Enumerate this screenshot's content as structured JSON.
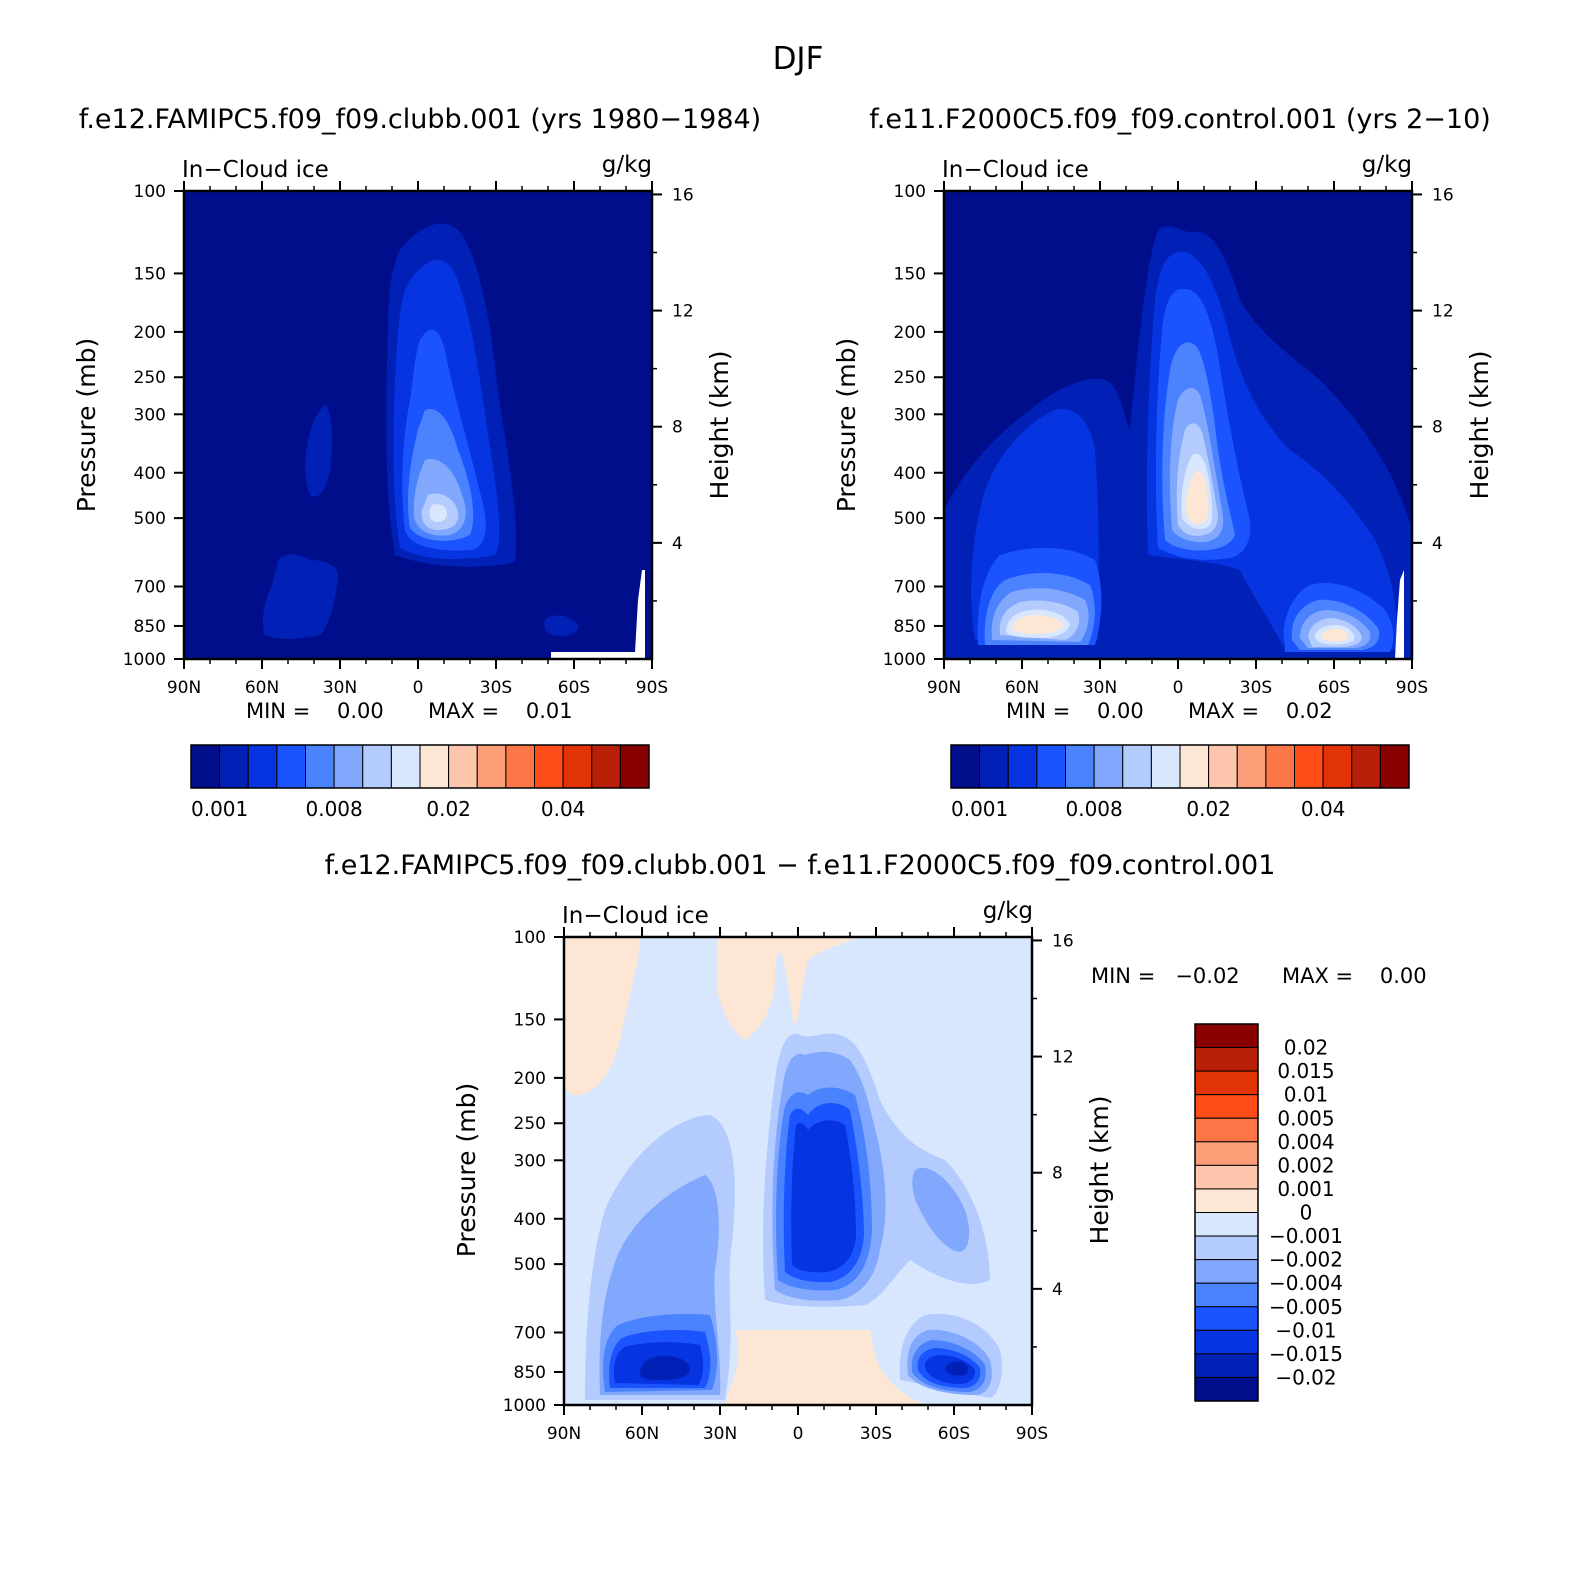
{
  "figure": {
    "title": "DJF"
  },
  "chart_data": [
    {
      "type": "heatmap",
      "title": "f.e12.FAMIPC5.f09_f09.clubb.001 (yrs 1980−1984)",
      "variable": "In−Cloud ice",
      "units": "g/kg",
      "xlabel": "",
      "ylabel": "Pressure (mb)",
      "ylabel_right": "Height (km)",
      "x_ticks": [
        "90N",
        "60N",
        "30N",
        "0",
        "30S",
        "60S",
        "90S"
      ],
      "y_ticks": [
        "100",
        "150",
        "200",
        "250",
        "300",
        "400",
        "500",
        "700",
        "850",
        "1000"
      ],
      "right_ticks": [
        "16",
        "12",
        "8",
        "4"
      ],
      "min_text": "MIN =    0.00",
      "max_text": "MAX =    0.01",
      "contour_levels": [
        "0.001",
        "0.002",
        "0.004",
        "0.006",
        "0.008",
        "0.01",
        "0.015",
        "0.02",
        "0.025",
        "0.03",
        "0.035",
        "0.04",
        "0.045",
        "0.05"
      ],
      "colorbar_labels": [
        "0.001",
        "0.008",
        "0.02",
        "0.04"
      ]
    },
    {
      "type": "heatmap",
      "title": "f.e11.F2000C5.f09_f09.control.001 (yrs 2−10)",
      "variable": "In−Cloud ice",
      "units": "g/kg",
      "xlabel": "",
      "ylabel": "Pressure (mb)",
      "ylabel_right": "Height (km)",
      "x_ticks": [
        "90N",
        "60N",
        "30N",
        "0",
        "30S",
        "60S",
        "90S"
      ],
      "y_ticks": [
        "100",
        "150",
        "200",
        "250",
        "300",
        "400",
        "500",
        "700",
        "850",
        "1000"
      ],
      "right_ticks": [
        "16",
        "12",
        "8",
        "4"
      ],
      "min_text": "MIN =    0.00",
      "max_text": "MAX =    0.02",
      "contour_levels": [
        "0.001",
        "0.002",
        "0.004",
        "0.006",
        "0.008",
        "0.01",
        "0.015",
        "0.02",
        "0.025",
        "0.03",
        "0.035",
        "0.04",
        "0.045",
        "0.05"
      ],
      "colorbar_labels": [
        "0.001",
        "0.008",
        "0.02",
        "0.04"
      ]
    },
    {
      "type": "heatmap",
      "title": "f.e12.FAMIPC5.f09_f09.clubb.001 − f.e11.F2000C5.f09_f09.control.001",
      "variable": "In−Cloud ice",
      "units": "g/kg",
      "xlabel": "",
      "ylabel": "Pressure (mb)",
      "ylabel_right": "Height (km)",
      "x_ticks": [
        "90N",
        "60N",
        "30N",
        "0",
        "30S",
        "60S",
        "90S"
      ],
      "y_ticks": [
        "100",
        "150",
        "200",
        "250",
        "300",
        "400",
        "500",
        "700",
        "850",
        "1000"
      ],
      "right_ticks": [
        "16",
        "12",
        "8",
        "4"
      ],
      "min_text": "MIN =   −0.02",
      "max_text": "MAX =    0.00",
      "colorbar_labels": [
        "0.02",
        "0.015",
        "0.01",
        "0.005",
        "0.004",
        "0.002",
        "0.001",
        "0",
        "−0.001",
        "−0.002",
        "−0.004",
        "−0.005",
        "−0.01",
        "−0.015",
        "−0.02"
      ]
    }
  ],
  "colors": {
    "seq": [
      "#000e8c",
      "#0020b6",
      "#0534e0",
      "#1b54ff",
      "#4b82fe",
      "#82a8fd",
      "#b4cbfe",
      "#d9e7fe",
      "#fde6d3",
      "#fdc6ad",
      "#fc9e78",
      "#fc7647",
      "#fe4d19",
      "#e13306",
      "#b82008",
      "#890000"
    ],
    "diff": [
      "#890000",
      "#b82008",
      "#e13306",
      "#fe4d19",
      "#fc7647",
      "#fc9e78",
      "#fdc6ad",
      "#fde6d3",
      "#d9e7fe",
      "#b4cbfe",
      "#82a8fd",
      "#4b82fe",
      "#1b54ff",
      "#0534e0",
      "#0020b6",
      "#000e8c"
    ]
  }
}
